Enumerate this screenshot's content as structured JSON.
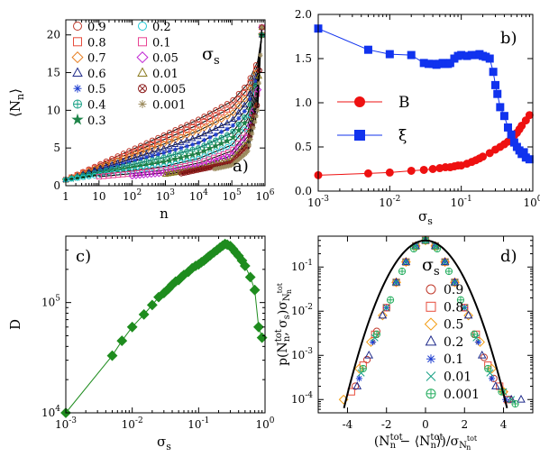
{
  "chart_data": [
    {
      "panel": "a)",
      "type": "scatter",
      "xscale": "log",
      "xlim": [
        1,
        1000000
      ],
      "ylim": [
        0,
        22
      ],
      "xlabel": "n",
      "ylabel": "⟨N",
      "ylabel_sub": "n",
      "ylabel_end": "⟩",
      "xticks": [
        {
          "v": 1,
          "t": "1"
        },
        {
          "v": 10,
          "t": "10"
        },
        {
          "v": 100,
          "b": "10",
          "e": "2"
        },
        {
          "v": 1000,
          "b": "10",
          "e": "3"
        },
        {
          "v": 10000,
          "b": "10",
          "e": "4"
        },
        {
          "v": 100000,
          "b": "10",
          "e": "5"
        },
        {
          "v": 1000000,
          "b": "10",
          "e": "6"
        }
      ],
      "yticks": [
        0,
        5,
        10,
        15,
        20
      ],
      "legend_title": "σ",
      "legend_title_sub": "s",
      "series": [
        {
          "name": "0.9",
          "color": "#c0392b",
          "marker": "circle",
          "x": [
            1,
            10,
            100,
            1000,
            10000,
            100000,
            300000,
            600000,
            800000
          ],
          "y": [
            0.8,
            2.8,
            4.8,
            6.8,
            8.8,
            11.2,
            13.5,
            16.5,
            20
          ]
        },
        {
          "name": "0.8",
          "color": "#e74c3c",
          "marker": "square",
          "x": [
            1,
            10,
            100,
            1000,
            10000,
            100000,
            300000,
            600000,
            800000
          ],
          "y": [
            0.8,
            2.6,
            4.4,
            6.2,
            8.1,
            10.4,
            12.8,
            16,
            20
          ]
        },
        {
          "name": "0.7",
          "color": "#e67e22",
          "marker": "diamond",
          "x": [
            1,
            10,
            100,
            1000,
            10000,
            100000,
            300000,
            600000,
            800000
          ],
          "y": [
            0.8,
            2.4,
            4.0,
            5.6,
            7.3,
            9.5,
            12,
            15.5,
            20
          ]
        },
        {
          "name": "0.6",
          "color": "#1f2a8a",
          "marker": "triangle",
          "x": [
            1,
            10,
            100,
            1000,
            10000,
            100000,
            300000,
            600000,
            800000
          ],
          "y": [
            0.8,
            2.2,
            3.6,
            5.0,
            6.5,
            8.6,
            11.2,
            15,
            20
          ]
        },
        {
          "name": "0.5",
          "color": "#1f3fd1",
          "marker": "star",
          "x": [
            1,
            10,
            100,
            1000,
            10000,
            100000,
            300000,
            600000,
            800000
          ],
          "y": [
            0.8,
            2.0,
            3.2,
            4.4,
            5.7,
            7.8,
            10.4,
            14.5,
            20
          ]
        },
        {
          "name": "0.4",
          "color": "#16a085",
          "marker": "circleplus",
          "x": [
            1,
            10,
            100,
            1000,
            10000,
            100000,
            300000,
            600000,
            800000
          ],
          "y": [
            0.8,
            1.8,
            2.8,
            3.8,
            5.0,
            7.0,
            9.6,
            14,
            20
          ]
        },
        {
          "name": "0.3",
          "color": "#1e8449",
          "marker": "fstar",
          "x": [
            1,
            10,
            100,
            1000,
            10000,
            100000,
            300000,
            600000,
            800000
          ],
          "y": [
            0.8,
            1.6,
            2.4,
            3.2,
            4.3,
            6.2,
            8.8,
            13.5,
            20
          ]
        },
        {
          "name": "0.2",
          "color": "#20c9d6",
          "marker": "circle",
          "x": [
            1,
            10,
            100,
            1000,
            10000,
            100000,
            300000,
            600000,
            800000
          ],
          "y": [
            0.8,
            1.4,
            2.0,
            2.6,
            3.6,
            5.4,
            8.0,
            13,
            21
          ]
        },
        {
          "name": "0.1",
          "color": "#e84393",
          "marker": "square",
          "x": [
            10,
            100,
            1000,
            10000,
            100000,
            300000,
            600000,
            800000
          ],
          "y": [
            1.2,
            1.6,
            2.1,
            3.0,
            4.6,
            7.2,
            12.5,
            21
          ]
        },
        {
          "name": "0.05",
          "color": "#c026d3",
          "marker": "diamond",
          "x": [
            100,
            1000,
            10000,
            100000,
            300000,
            600000,
            800000
          ],
          "y": [
            1.3,
            1.7,
            2.5,
            4.0,
            6.5,
            12,
            21
          ]
        },
        {
          "name": "0.01",
          "color": "#8a7a1e",
          "marker": "triangle",
          "x": [
            1000,
            10000,
            100000,
            300000,
            600000,
            800000
          ],
          "y": [
            1.5,
            2.2,
            3.4,
            5.8,
            11.5,
            21
          ]
        },
        {
          "name": "0.005",
          "color": "#8b1a1a",
          "marker": "circlex",
          "x": [
            3000,
            10000,
            100000,
            300000,
            600000,
            800000
          ],
          "y": [
            1.6,
            2.1,
            3.0,
            5.2,
            11,
            21
          ]
        },
        {
          "name": "0.001",
          "color": "#9c8b5e",
          "marker": "asterisk",
          "x": [
            30000,
            100000,
            300000,
            600000,
            800000
          ],
          "y": [
            2.2,
            2.7,
            4.5,
            10,
            21
          ]
        }
      ]
    },
    {
      "panel": "b)",
      "type": "line",
      "xscale": "log",
      "xlim": [
        0.001,
        1
      ],
      "ylim": [
        0,
        2
      ],
      "xlabel": "σ",
      "xlabel_sub": "s",
      "xticks": [
        {
          "v": 0.001,
          "b": "10",
          "e": "-3"
        },
        {
          "v": 0.01,
          "b": "10",
          "e": "-2"
        },
        {
          "v": 0.1,
          "b": "10",
          "e": "-1"
        },
        {
          "v": 1,
          "b": "10",
          "e": "0"
        }
      ],
      "yticks": [
        "0.0",
        "0.5",
        "1.0",
        "1.5",
        "2.0"
      ],
      "series": [
        {
          "name": "B",
          "color": "#ee1111",
          "marker": "circle",
          "x": [
            0.001,
            0.005,
            0.01,
            0.02,
            0.03,
            0.04,
            0.05,
            0.06,
            0.07,
            0.08,
            0.09,
            0.1,
            0.12,
            0.14,
            0.16,
            0.18,
            0.2,
            0.25,
            0.3,
            0.35,
            0.4,
            0.45,
            0.5,
            0.55,
            0.6,
            0.65,
            0.7,
            0.8,
            0.9
          ],
          "y": [
            0.18,
            0.2,
            0.21,
            0.23,
            0.24,
            0.25,
            0.26,
            0.27,
            0.27,
            0.28,
            0.29,
            0.29,
            0.31,
            0.33,
            0.35,
            0.37,
            0.39,
            0.43,
            0.47,
            0.5,
            0.53,
            0.56,
            0.6,
            0.63,
            0.66,
            0.7,
            0.74,
            0.8,
            0.86
          ]
        },
        {
          "name": "ξ",
          "color": "#1133ee",
          "marker": "square",
          "x": [
            0.001,
            0.005,
            0.01,
            0.02,
            0.03,
            0.035,
            0.04,
            0.045,
            0.05,
            0.055,
            0.06,
            0.065,
            0.07,
            0.08,
            0.09,
            0.1,
            0.12,
            0.14,
            0.16,
            0.18,
            0.2,
            0.22,
            0.25,
            0.28,
            0.3,
            0.32,
            0.35,
            0.4,
            0.45,
            0.5,
            0.55,
            0.6,
            0.65,
            0.7,
            0.75,
            0.8,
            0.9
          ],
          "y": [
            1.84,
            1.6,
            1.55,
            1.54,
            1.45,
            1.44,
            1.44,
            1.43,
            1.44,
            1.45,
            1.44,
            1.44,
            1.45,
            1.5,
            1.53,
            1.54,
            1.53,
            1.54,
            1.54,
            1.55,
            1.53,
            1.52,
            1.5,
            1.35,
            1.2,
            1.1,
            0.95,
            0.85,
            0.72,
            0.64,
            0.55,
            0.5,
            0.46,
            0.42,
            0.44,
            0.38,
            0.36
          ]
        }
      ]
    },
    {
      "panel": "c)",
      "type": "line",
      "xscale": "log",
      "yscale": "log",
      "xlim": [
        0.001,
        1
      ],
      "ylim": [
        10000,
        400000
      ],
      "ylabel": "D",
      "xlabel": "σ",
      "xlabel_sub": "s",
      "xticks": [
        {
          "v": 0.001,
          "b": "10",
          "e": "-3"
        },
        {
          "v": 0.01,
          "b": "10",
          "e": "-2"
        },
        {
          "v": 0.1,
          "b": "10",
          "e": "-1"
        },
        {
          "v": 1,
          "b": "10",
          "e": "0"
        }
      ],
      "yticks": [
        {
          "v": 10000,
          "b": "10",
          "e": "4"
        },
        {
          "v": 100000,
          "b": "10",
          "e": "5"
        }
      ],
      "series": [
        {
          "name": "",
          "color": "#1e8c1e",
          "marker": "diamond",
          "x": [
            0.001,
            0.005,
            0.007,
            0.01,
            0.015,
            0.02,
            0.025,
            0.03,
            0.035,
            0.04,
            0.045,
            0.05,
            0.055,
            0.06,
            0.07,
            0.08,
            0.09,
            0.1,
            0.11,
            0.12,
            0.13,
            0.14,
            0.15,
            0.17,
            0.19,
            0.21,
            0.23,
            0.25,
            0.27,
            0.3,
            0.33,
            0.36,
            0.4,
            0.45,
            0.5,
            0.6,
            0.7,
            0.8,
            0.9
          ],
          "y": [
            10000,
            33000,
            45000,
            60000,
            78000,
            95000,
            112000,
            122000,
            133000,
            145000,
            155000,
            160000,
            170000,
            178000,
            190000,
            205000,
            215000,
            222000,
            232000,
            240000,
            250000,
            260000,
            268000,
            285000,
            300000,
            315000,
            328000,
            340000,
            335000,
            325000,
            305000,
            285000,
            265000,
            240000,
            215000,
            170000,
            130000,
            60000,
            48000
          ]
        }
      ]
    },
    {
      "panel": "d)",
      "type": "scatter",
      "yscale": "log",
      "xlim": [
        -5.5,
        5.5
      ],
      "ylim": [
        5e-05,
        0.5
      ],
      "xticks": [
        -4,
        -2,
        0,
        2,
        4
      ],
      "yticks": [
        {
          "v": 0.0001,
          "b": "10",
          "e": "-4"
        },
        {
          "v": 0.001,
          "b": "10",
          "e": "-3"
        },
        {
          "v": 0.01,
          "b": "10",
          "e": "-2"
        },
        {
          "v": 0.1,
          "b": "10",
          "e": "-1"
        }
      ],
      "ylabel": "p(N",
      "xlabel": "(N",
      "legend_title": "σ",
      "legend_title_sub": "s",
      "series": [
        {
          "name": "0.9",
          "color": "#c0392b",
          "marker": "circle",
          "x": [
            -3.6,
            -3,
            -2.5,
            -2,
            -1.5,
            -1,
            -0.5,
            0,
            0.5,
            1,
            1.5,
            2,
            2.5,
            3,
            3.5,
            4,
            4.3
          ],
          "y": [
            0.0002,
            0.0008,
            0.0035,
            0.012,
            0.045,
            0.13,
            0.3,
            0.4,
            0.3,
            0.13,
            0.045,
            0.012,
            0.003,
            0.0009,
            0.0003,
            0.00015,
            0.0001
          ]
        },
        {
          "name": "0.8",
          "color": "#e74c3c",
          "marker": "square",
          "x": [
            -3.8,
            -3.2,
            -2.6,
            -2,
            -1.5,
            -1,
            -0.5,
            0,
            0.5,
            1,
            1.5,
            2,
            2.6,
            3.2,
            3.8,
            4.2
          ],
          "y": [
            0.00015,
            0.0006,
            0.003,
            0.012,
            0.045,
            0.13,
            0.3,
            0.4,
            0.3,
            0.13,
            0.045,
            0.012,
            0.003,
            0.0006,
            0.0002,
            0.0001
          ]
        },
        {
          "name": "0.5",
          "color": "#f39c12",
          "marker": "diamond",
          "x": [
            -4.2,
            -3.4,
            -2.8,
            -2.2,
            -1.5,
            -1,
            -0.5,
            0,
            0.5,
            1,
            1.5,
            2.2,
            2.8,
            3.4,
            4.0
          ],
          "y": [
            0.0001,
            0.0005,
            0.002,
            0.008,
            0.045,
            0.13,
            0.3,
            0.4,
            0.3,
            0.13,
            0.045,
            0.008,
            0.002,
            0.0005,
            0.00015
          ]
        },
        {
          "name": "0.2",
          "color": "#1f2a8a",
          "marker": "triangle",
          "x": [
            -3.5,
            -2.9,
            -2.2,
            -1.5,
            -1,
            -0.5,
            0,
            0.5,
            1,
            1.5,
            2.2,
            2.9,
            3.6,
            4.4,
            4.9
          ],
          "y": [
            0.0002,
            0.001,
            0.008,
            0.045,
            0.13,
            0.3,
            0.4,
            0.3,
            0.13,
            0.045,
            0.008,
            0.001,
            0.0002,
            0.0001,
            0.0001
          ]
        },
        {
          "name": "0.1",
          "color": "#1f3fd1",
          "marker": "star",
          "x": [
            -3.4,
            -2.7,
            -2,
            -1.5,
            -1,
            -0.5,
            0,
            0.5,
            1,
            1.5,
            2,
            2.7,
            3.4,
            4.1
          ],
          "y": [
            0.0003,
            0.002,
            0.012,
            0.045,
            0.13,
            0.3,
            0.4,
            0.3,
            0.13,
            0.045,
            0.012,
            0.002,
            0.0003,
            0.0001
          ]
        },
        {
          "name": "0.01",
          "color": "#16a085",
          "marker": "cross",
          "x": [
            -3.3,
            -2.6,
            -2,
            -1.5,
            -1,
            -0.5,
            0,
            0.5,
            1,
            1.5,
            2,
            2.6,
            3.3,
            4.0,
            4.4
          ],
          "y": [
            0.0004,
            0.0025,
            0.012,
            0.045,
            0.13,
            0.3,
            0.4,
            0.3,
            0.13,
            0.045,
            0.012,
            0.0025,
            0.0004,
            0.00015,
            0.0001
          ]
        },
        {
          "name": "0.001",
          "color": "#27ae60",
          "marker": "circleplus",
          "x": [
            -3.2,
            -2.5,
            -1.8,
            -1.2,
            -0.6,
            0,
            0.6,
            1.2,
            1.8,
            2.5,
            3.2,
            3.9,
            4.6
          ],
          "y": [
            0.0005,
            0.003,
            0.018,
            0.08,
            0.26,
            0.4,
            0.26,
            0.08,
            0.018,
            0.003,
            0.0005,
            0.00015,
            8e-05
          ]
        }
      ]
    }
  ]
}
